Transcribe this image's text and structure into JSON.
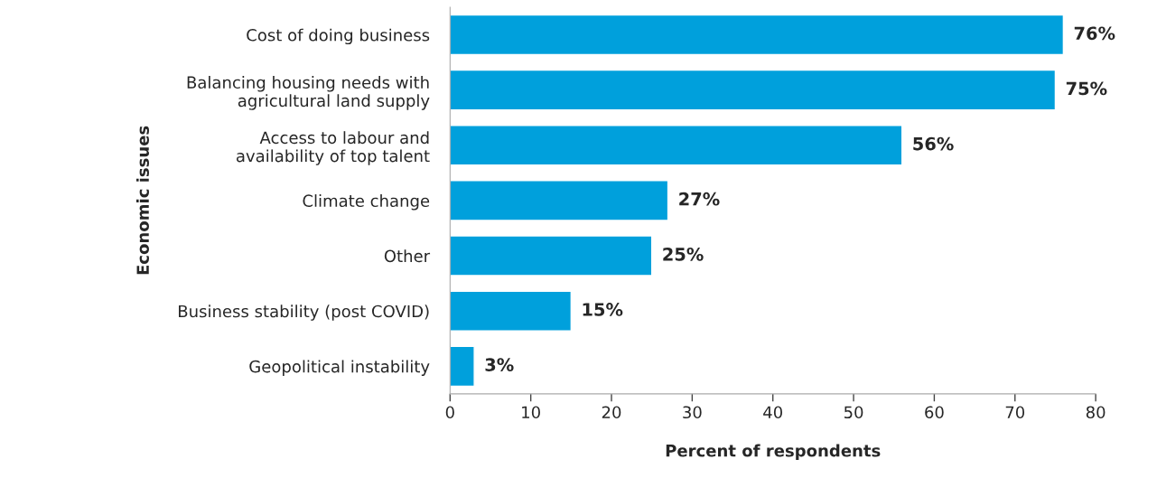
{
  "chart_data": {
    "type": "bar",
    "orientation": "horizontal",
    "categories": [
      "Cost of doing business",
      "Balancing housing needs with\nagricultural land supply",
      "Access to labour and\navailability of top talent",
      "Climate change",
      "Other",
      "Business stability (post COVID)",
      "Geopolitical instability"
    ],
    "values": [
      76,
      75,
      56,
      27,
      25,
      15,
      3
    ],
    "value_labels": [
      "76%",
      "75%",
      "56%",
      "27%",
      "25%",
      "15%",
      "3%"
    ],
    "color": "#00a0dc",
    "xlim": [
      0,
      80
    ],
    "xticks": [
      0,
      10,
      20,
      30,
      40,
      50,
      60,
      70,
      80
    ],
    "xlabel": "Percent of respondents",
    "ylabel": "Economic issues",
    "grid": false,
    "legend": false
  }
}
